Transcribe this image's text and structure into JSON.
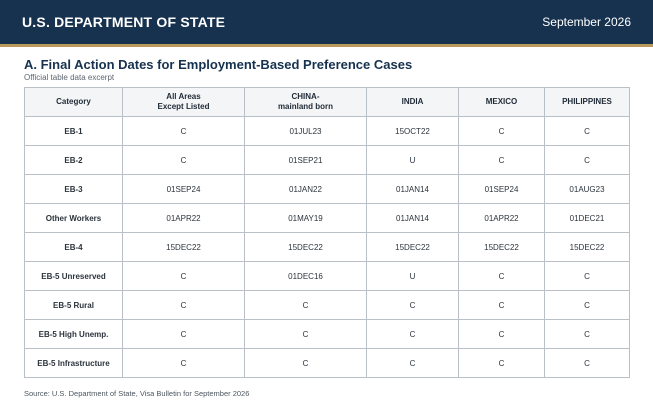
{
  "header": {
    "org": "U.S. DEPARTMENT OF STATE",
    "date": "September 2026"
  },
  "section": {
    "title": "A. Final Action Dates for Employment-Based Preference Cases",
    "subtitle": "Official table data excerpt"
  },
  "table": {
    "headers": [
      {
        "line1": "Category",
        "line2": ""
      },
      {
        "line1": "All Areas",
        "line2": "Except Listed"
      },
      {
        "line1": "CHINA-",
        "line2": "mainland born"
      },
      {
        "line1": "INDIA",
        "line2": ""
      },
      {
        "line1": "MEXICO",
        "line2": ""
      },
      {
        "line1": "PHILIPPINES",
        "line2": ""
      }
    ],
    "rows": [
      [
        "EB-1",
        "C",
        "01JUL23",
        "15OCT22",
        "C",
        "C"
      ],
      [
        "EB-2",
        "C",
        "01SEP21",
        "U",
        "C",
        "C"
      ],
      [
        "EB-3",
        "01SEP24",
        "01JAN22",
        "01JAN14",
        "01SEP24",
        "01AUG23"
      ],
      [
        "Other Workers",
        "01APR22",
        "01MAY19",
        "01JAN14",
        "01APR22",
        "01DEC21"
      ],
      [
        "EB-4",
        "15DEC22",
        "15DEC22",
        "15DEC22",
        "15DEC22",
        "15DEC22"
      ],
      [
        "EB-5 Unreserved",
        "C",
        "01DEC16",
        "U",
        "C",
        "C"
      ],
      [
        "EB-5 Rural",
        "C",
        "C",
        "C",
        "C",
        "C"
      ],
      [
        "EB-5 High Unemp.",
        "C",
        "C",
        "C",
        "C",
        "C"
      ],
      [
        "EB-5 Infrastructure",
        "C",
        "C",
        "C",
        "C",
        "C"
      ]
    ]
  },
  "footer": {
    "source": "Source: U.S. Department of State, Visa Bulletin for September 2026"
  },
  "colors": {
    "header_bg": "#17324f",
    "accent": "#b99a5b"
  }
}
